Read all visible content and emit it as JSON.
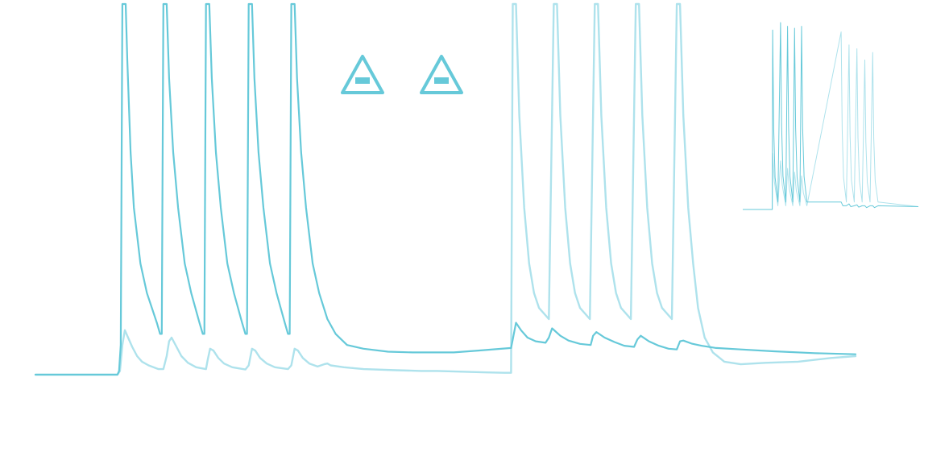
{
  "chart_data": {
    "type": "line",
    "title": "",
    "xlabel": "",
    "ylabel": "",
    "grid": false,
    "legend": "none",
    "axes_visible": false,
    "colors": {
      "dark": "#66c9d9",
      "light": "#aee2ec"
    },
    "main": {
      "xlim": [
        0,
        1000
      ],
      "ylim": [
        0,
        100
      ],
      "series": [
        {
          "color": "dark",
          "stroke": 2.2,
          "points": [
            [
              0,
              0
            ],
            [
              100,
              0
            ],
            [
              102,
              1
            ],
            [
              104,
              8
            ],
            [
              106,
              100
            ],
            [
              110,
              100
            ],
            [
              112,
              85
            ],
            [
              116,
              60
            ],
            [
              120,
              45
            ],
            [
              128,
              30
            ],
            [
              136,
              22
            ],
            [
              148,
              14
            ],
            [
              152,
              11
            ],
            [
              154,
              11
            ],
            [
              156,
              100
            ],
            [
              160,
              100
            ],
            [
              163,
              80
            ],
            [
              168,
              60
            ],
            [
              174,
              45
            ],
            [
              182,
              30
            ],
            [
              190,
              22
            ],
            [
              200,
              14
            ],
            [
              204,
              11
            ],
            [
              206,
              11
            ],
            [
              208,
              100
            ],
            [
              212,
              100
            ],
            [
              215,
              80
            ],
            [
              220,
              60
            ],
            [
              226,
              45
            ],
            [
              234,
              30
            ],
            [
              242,
              22
            ],
            [
              252,
              14
            ],
            [
              256,
              11
            ],
            [
              258,
              11
            ],
            [
              260,
              100
            ],
            [
              264,
              100
            ],
            [
              267,
              80
            ],
            [
              272,
              60
            ],
            [
              278,
              45
            ],
            [
              286,
              30
            ],
            [
              294,
              22
            ],
            [
              304,
              14
            ],
            [
              308,
              11
            ],
            [
              310,
              11
            ],
            [
              312,
              100
            ],
            [
              316,
              100
            ],
            [
              319,
              80
            ],
            [
              324,
              60
            ],
            [
              330,
              45
            ],
            [
              338,
              30
            ],
            [
              346,
              22
            ],
            [
              356,
              15
            ],
            [
              366,
              11
            ],
            [
              380,
              8
            ],
            [
              400,
              7
            ],
            [
              430,
              6.2
            ],
            [
              460,
              6
            ],
            [
              510,
              6
            ],
            [
              540,
              6.5
            ],
            [
              580,
              7.2
            ],
            [
              582,
              9.5
            ],
            [
              586,
              14
            ],
            [
              592,
              12
            ],
            [
              600,
              10
            ],
            [
              610,
              9
            ],
            [
              622,
              8.6
            ],
            [
              626,
              10
            ],
            [
              630,
              12.5
            ],
            [
              640,
              10.5
            ],
            [
              650,
              9.2
            ],
            [
              664,
              8.3
            ],
            [
              677,
              8
            ],
            [
              680,
              10.5
            ],
            [
              684,
              11.5
            ],
            [
              694,
              10
            ],
            [
              706,
              8.8
            ],
            [
              718,
              7.8
            ],
            [
              730,
              7.5
            ],
            [
              734,
              9.5
            ],
            [
              738,
              10.5
            ],
            [
              748,
              9
            ],
            [
              760,
              7.8
            ],
            [
              772,
              7
            ],
            [
              782,
              6.8
            ],
            [
              786,
              9
            ],
            [
              790,
              9.2
            ],
            [
              800,
              8.4
            ],
            [
              812,
              7.8
            ],
            [
              830,
              7.2
            ],
            [
              860,
              6.8
            ],
            [
              900,
              6.3
            ],
            [
              950,
              5.8
            ],
            [
              1000,
              5.5
            ]
          ]
        },
        {
          "color": "light",
          "stroke": 2.4,
          "points": [
            [
              0,
              0
            ],
            [
              100,
              0
            ],
            [
              103,
              1
            ],
            [
              106,
              8
            ],
            [
              109,
              12
            ],
            [
              113,
              10
            ],
            [
              118,
              7.5
            ],
            [
              124,
              5
            ],
            [
              130,
              3.5
            ],
            [
              138,
              2.5
            ],
            [
              150,
              1.5
            ],
            [
              156,
              1.5
            ],
            [
              160,
              5
            ],
            [
              163,
              9
            ],
            [
              166,
              10
            ],
            [
              172,
              7.5
            ],
            [
              178,
              5
            ],
            [
              186,
              3.2
            ],
            [
              196,
              2
            ],
            [
              208,
              1.5
            ],
            [
              210,
              4
            ],
            [
              213,
              7
            ],
            [
              217,
              6.5
            ],
            [
              223,
              4.5
            ],
            [
              230,
              3
            ],
            [
              240,
              2
            ],
            [
              256,
              1.4
            ],
            [
              260,
              2.5
            ],
            [
              264,
              7
            ],
            [
              268,
              6.5
            ],
            [
              274,
              4.5
            ],
            [
              282,
              3
            ],
            [
              292,
              2
            ],
            [
              308,
              1.5
            ],
            [
              312,
              2.5
            ],
            [
              316,
              7
            ],
            [
              320,
              6.5
            ],
            [
              326,
              4.5
            ],
            [
              334,
              3
            ],
            [
              344,
              2.2
            ],
            [
              352,
              2.8
            ],
            [
              356,
              3
            ],
            [
              360,
              2.5
            ],
            [
              376,
              2
            ],
            [
              400,
              1.5
            ],
            [
              440,
              1.2
            ],
            [
              470,
              1
            ],
            [
              490,
              1
            ],
            [
              520,
              0.8
            ],
            [
              550,
              0.6
            ],
            [
              572,
              0.5
            ],
            [
              580,
              0.5
            ],
            [
              582,
              100
            ],
            [
              586,
              100
            ],
            [
              590,
              70
            ],
            [
              596,
              45
            ],
            [
              602,
              30
            ],
            [
              608,
              22
            ],
            [
              614,
              18
            ],
            [
              626,
              15
            ],
            [
              632,
              100
            ],
            [
              636,
              100
            ],
            [
              640,
              70
            ],
            [
              646,
              45
            ],
            [
              652,
              30
            ],
            [
              658,
              22
            ],
            [
              664,
              18
            ],
            [
              676,
              15
            ],
            [
              682,
              100
            ],
            [
              686,
              100
            ],
            [
              690,
              70
            ],
            [
              696,
              45
            ],
            [
              702,
              30
            ],
            [
              708,
              22
            ],
            [
              714,
              18
            ],
            [
              726,
              15
            ],
            [
              732,
              100
            ],
            [
              736,
              100
            ],
            [
              740,
              70
            ],
            [
              746,
              45
            ],
            [
              752,
              30
            ],
            [
              758,
              22
            ],
            [
              764,
              18
            ],
            [
              776,
              15
            ],
            [
              782,
              100
            ],
            [
              786,
              100
            ],
            [
              790,
              70
            ],
            [
              796,
              45
            ],
            [
              802,
              30
            ],
            [
              808,
              18
            ],
            [
              816,
              10
            ],
            [
              826,
              6
            ],
            [
              840,
              3.5
            ],
            [
              860,
              2.8
            ],
            [
              890,
              3.2
            ],
            [
              930,
              3.5
            ],
            [
              970,
              4.5
            ],
            [
              1000,
              5
            ]
          ]
        }
      ]
    },
    "inset": {
      "xlim": [
        0,
        1000
      ],
      "ylim": [
        0,
        100
      ],
      "series": [
        {
          "color": "dark",
          "stroke": 1,
          "spikes": [
            [
              170,
              96
            ],
            [
              215,
              100
            ],
            [
              255,
              98
            ],
            [
              295,
              97
            ],
            [
              335,
              98
            ]
          ],
          "bumps": [
            [
              560,
              4
            ],
            [
              605,
              3
            ],
            [
              650,
              2.5
            ],
            [
              695,
              2
            ],
            [
              740,
              2
            ]
          ]
        },
        {
          "color": "light",
          "stroke": 1,
          "spikes": [
            [
              560,
              95
            ],
            [
              605,
              88
            ],
            [
              650,
              86
            ],
            [
              695,
              80
            ],
            [
              740,
              84
            ]
          ],
          "bumps": [
            [
              170,
              30
            ],
            [
              215,
              26
            ],
            [
              255,
              22
            ],
            [
              295,
              20
            ],
            [
              335,
              18
            ]
          ]
        }
      ]
    },
    "markers": [
      {
        "icon": "warning-triangle-icon",
        "color": "dark"
      },
      {
        "icon": "warning-triangle-icon",
        "color": "dark"
      }
    ]
  }
}
